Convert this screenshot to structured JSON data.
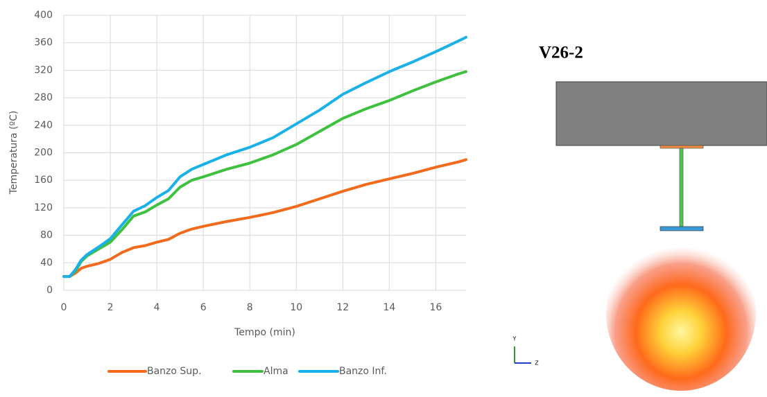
{
  "chart_data": {
    "type": "line",
    "x_label": "Tempo (min)",
    "y_label": "Temperatura (ºC)",
    "x": [
      0,
      0.25,
      0.5,
      0.75,
      1,
      1.5,
      2,
      2.5,
      3,
      3.5,
      4,
      4.5,
      5,
      5.5,
      6,
      7,
      8,
      9,
      10,
      11,
      12,
      13,
      14,
      15,
      16,
      17,
      17.3
    ],
    "series": [
      {
        "name": "Banzo Sup.",
        "color": "#f26b1d",
        "values": [
          20,
          20,
          25,
          32,
          35,
          39,
          45,
          55,
          62,
          65,
          70,
          74,
          83,
          89,
          93,
          100,
          106,
          113,
          122,
          133,
          144,
          154,
          162,
          170,
          179,
          187,
          190
        ]
      },
      {
        "name": "Alma",
        "color": "#3ec13e",
        "values": [
          20,
          20,
          28,
          42,
          50,
          60,
          70,
          88,
          108,
          114,
          124,
          133,
          150,
          160,
          165,
          176,
          185,
          197,
          212,
          231,
          250,
          264,
          276,
          290,
          303,
          315,
          318
        ]
      },
      {
        "name": "Banzo Inf.",
        "color": "#1ab0e8",
        "values": [
          20,
          20,
          30,
          44,
          52,
          63,
          75,
          95,
          115,
          123,
          135,
          145,
          165,
          176,
          183,
          197,
          208,
          222,
          242,
          262,
          285,
          302,
          318,
          332,
          347,
          363,
          368
        ]
      }
    ],
    "xlim": [
      0,
      17.3
    ],
    "xticks": [
      0,
      2,
      4,
      6,
      8,
      10,
      12,
      14,
      16
    ],
    "ylim": [
      0,
      400
    ],
    "yticks": [
      0,
      40,
      80,
      120,
      160,
      200,
      240,
      280,
      320,
      360,
      400
    ],
    "grid": true,
    "legend": "bottom"
  },
  "figure": {
    "title": "V26-2",
    "axis_labels": [
      "Y",
      "Z"
    ]
  }
}
